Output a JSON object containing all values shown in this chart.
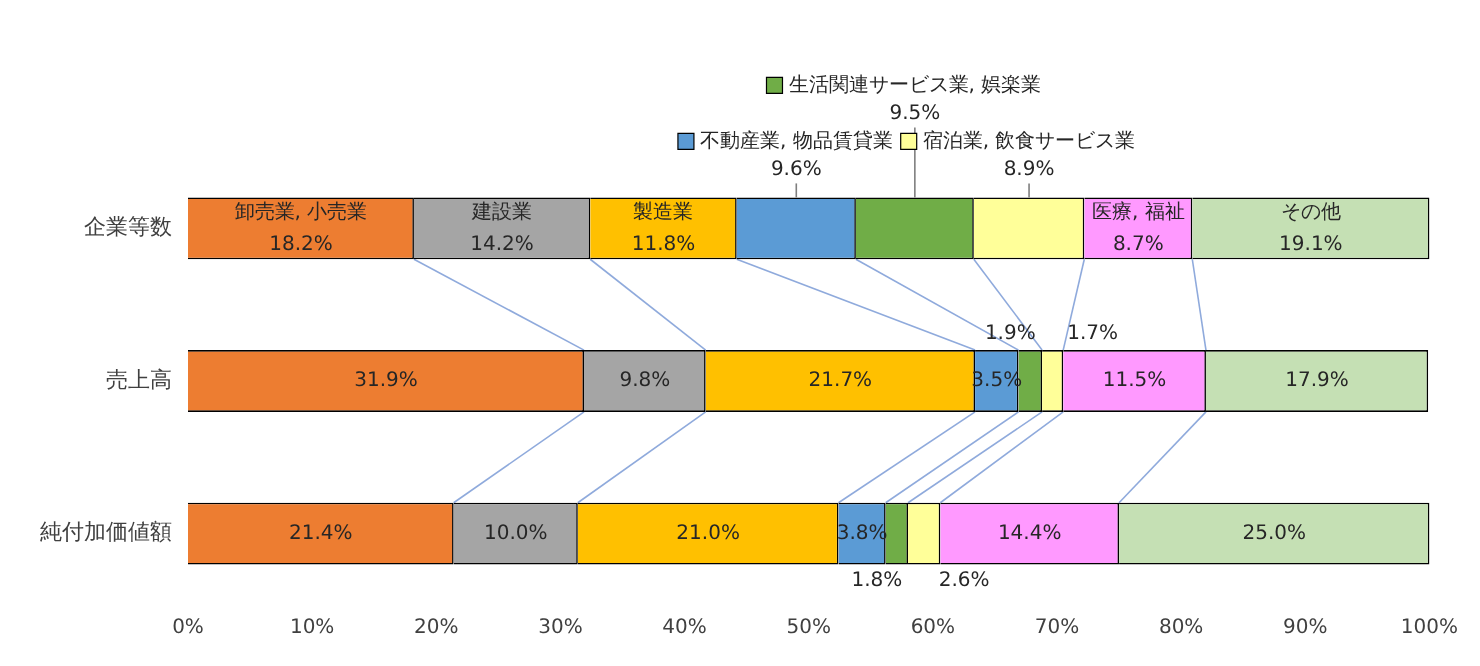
{
  "chart_data": {
    "type": "bar",
    "orientation": "horizontal",
    "stacked": true,
    "categories": [
      "企業等数",
      "売上高",
      "純付加価値額"
    ],
    "series": [
      {
        "name": "卸売業, 小売業",
        "color": "#ed7d31",
        "values": [
          18.2,
          31.9,
          21.4
        ],
        "value_labels": [
          "18.2%",
          "31.9%",
          "21.4%"
        ]
      },
      {
        "name": "建設業",
        "color": "#a5a5a5",
        "values": [
          14.2,
          9.8,
          10.0
        ],
        "value_labels": [
          "14.2%",
          "9.8%",
          "10.0%"
        ]
      },
      {
        "name": "製造業",
        "color": "#ffc000",
        "values": [
          11.8,
          21.7,
          21.0
        ],
        "value_labels": [
          "11.8%",
          "21.7%",
          "21.0%"
        ]
      },
      {
        "name": "不動産業, 物品賃貸業",
        "color": "#5b9bd5",
        "values": [
          9.6,
          3.5,
          3.8
        ],
        "value_labels": [
          "9.6%",
          "3.5%",
          "3.8%"
        ]
      },
      {
        "name": "生活関連サービス業, 娯楽業",
        "color": "#70ad47",
        "values": [
          9.5,
          1.9,
          1.8
        ],
        "value_labels": [
          "9.5%",
          "1.9%",
          "1.8%"
        ]
      },
      {
        "name": "宿泊業, 飲食サービス業",
        "color": "#ffff99",
        "values": [
          8.9,
          1.7,
          2.6
        ],
        "value_labels": [
          "8.9%",
          "1.7%",
          "2.6%"
        ]
      },
      {
        "name": "医療, 福祉",
        "color": "#ff99ff",
        "values": [
          8.7,
          11.5,
          14.4
        ],
        "value_labels": [
          "8.7%",
          "11.5%",
          "14.4%"
        ]
      },
      {
        "name": "その他",
        "color": "#c5e0b4",
        "values": [
          19.1,
          17.9,
          25.0
        ],
        "value_labels": [
          "19.1%",
          "17.9%",
          "25.0%"
        ]
      }
    ],
    "xlim": [
      0,
      100
    ],
    "xticks": [
      {
        "value": 0,
        "label": "0%"
      },
      {
        "value": 10,
        "label": "10%"
      },
      {
        "value": 20,
        "label": "20%"
      },
      {
        "value": 30,
        "label": "30%"
      },
      {
        "value": 40,
        "label": "40%"
      },
      {
        "value": 50,
        "label": "50%"
      },
      {
        "value": 60,
        "label": "60%"
      },
      {
        "value": 70,
        "label": "70%"
      },
      {
        "value": 80,
        "label": "80%"
      },
      {
        "value": 90,
        "label": "90%"
      },
      {
        "value": 100,
        "label": "100%"
      }
    ],
    "grid": false,
    "legend": "top"
  }
}
